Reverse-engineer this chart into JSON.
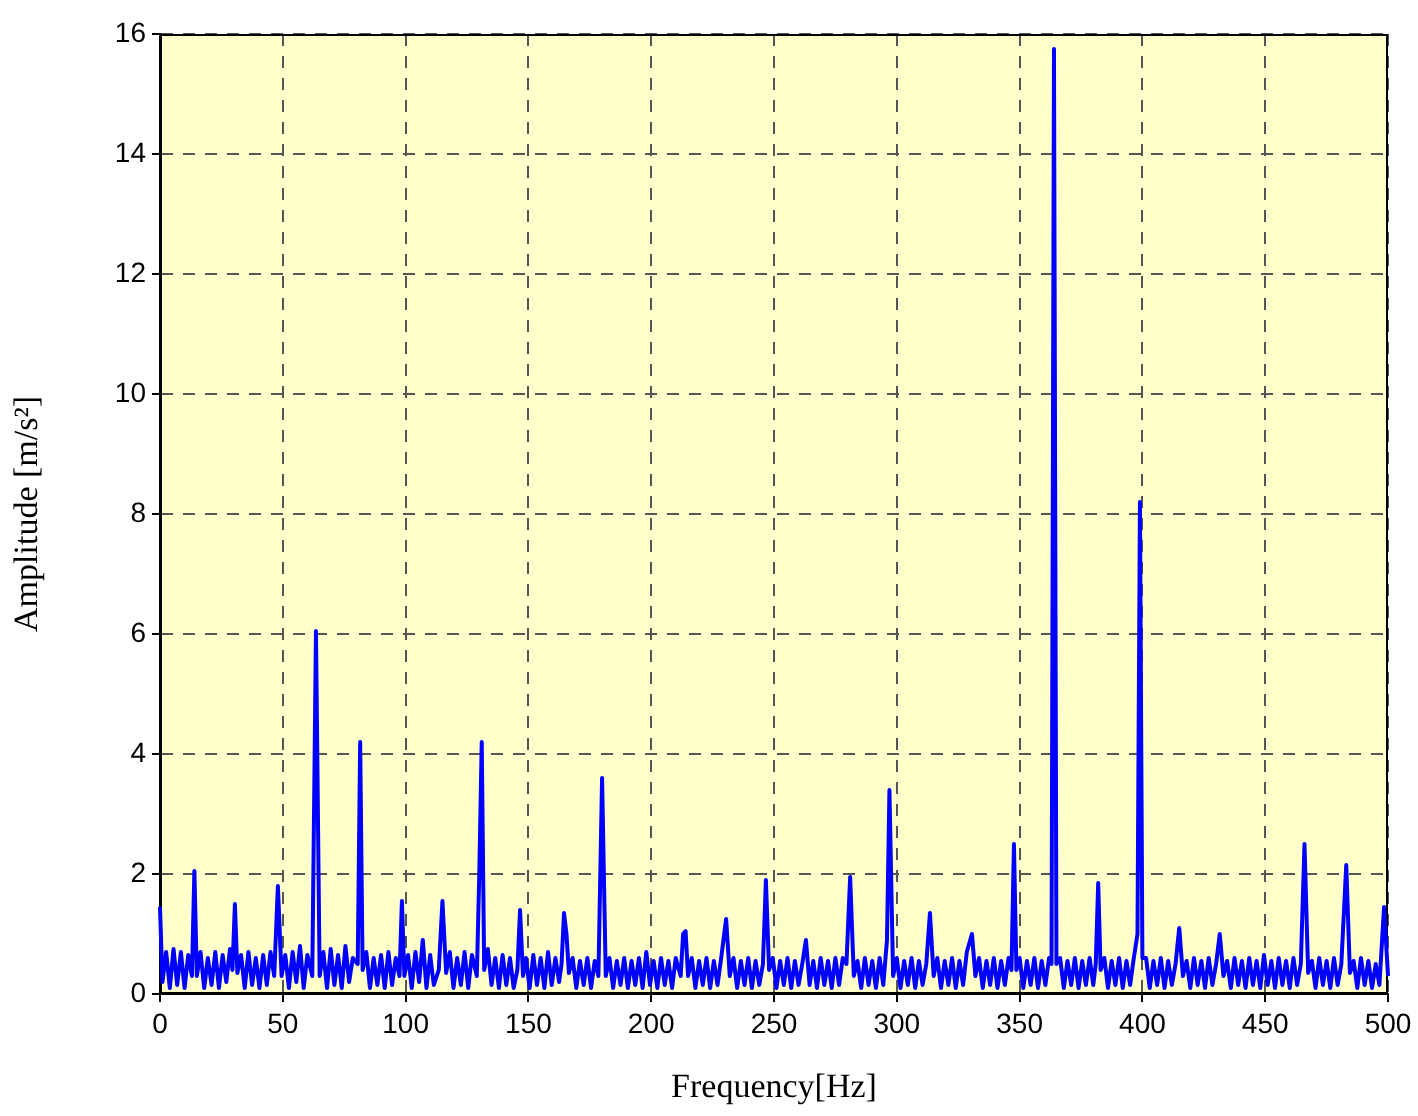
{
  "chart_data": {
    "type": "line",
    "xlabel": "Frequency[Hz]",
    "ylabel": "Amplitude [m/s²]",
    "xlim": [
      0,
      500
    ],
    "xticks": [
      0,
      50,
      100,
      150,
      200,
      250,
      300,
      350,
      400,
      450,
      500
    ],
    "ylim": [
      0,
      16
    ],
    "yticks": [
      0,
      2,
      4,
      6,
      8,
      10,
      12,
      14,
      16
    ],
    "grid": true,
    "legend": false,
    "marker": "none",
    "line_style": "solid",
    "series": [
      {
        "color": "#0000ff",
        "x": [
          0,
          1,
          2.5,
          4,
          5.5,
          7,
          8.5,
          10,
          11.5,
          13,
          14,
          15,
          16.5,
          18,
          19.5,
          21,
          22.5,
          24,
          25.5,
          27,
          28.5,
          29.5,
          30.5,
          31.5,
          33,
          34.5,
          36,
          37.5,
          39,
          40.5,
          42,
          43.5,
          45,
          46.5,
          48,
          49.5,
          51,
          52.5,
          54,
          55.5,
          57,
          58.5,
          60,
          62,
          63.5,
          65,
          66.5,
          68,
          69.5,
          71,
          72.5,
          74,
          75.5,
          77,
          78.5,
          80.5,
          81.5,
          82.5,
          84,
          85.5,
          87,
          88.5,
          90,
          91.5,
          93,
          94.5,
          96,
          97.5,
          98.5,
          99.5,
          101,
          102.5,
          104,
          105.5,
          107,
          108.5,
          110,
          111.5,
          113.5,
          115,
          116.5,
          118,
          119.5,
          121,
          122.5,
          124,
          125.5,
          127,
          129,
          130,
          131,
          132,
          133.5,
          135,
          136.5,
          138,
          139.5,
          141,
          142.5,
          144,
          145.5,
          146.6,
          147.8,
          149,
          150.5,
          152,
          153.5,
          155,
          156.5,
          158,
          159.5,
          161,
          162.5,
          163.5,
          164.5,
          165.5,
          166.5,
          168,
          169.5,
          171,
          172.5,
          174,
          175.5,
          177,
          178.5,
          180,
          181.5,
          183,
          184.5,
          186,
          187.5,
          189,
          190.5,
          192,
          193.5,
          195,
          196.5,
          198,
          199.5,
          201,
          202.5,
          204,
          205.5,
          207,
          208.5,
          210,
          212,
          213,
          214,
          215,
          216.5,
          218,
          219.5,
          221,
          222.5,
          224,
          225.5,
          227,
          228.5,
          230.5,
          232,
          233.5,
          235,
          236.5,
          238,
          239.5,
          241,
          242.5,
          244,
          245.5,
          246.7,
          248,
          249.5,
          251,
          252.5,
          254,
          255.5,
          257,
          258.5,
          260,
          261.5,
          263,
          264.5,
          266,
          267.5,
          269,
          270.5,
          272,
          273.5,
          275,
          276.5,
          278,
          279.5,
          281,
          282.5,
          284,
          285.5,
          287,
          288.5,
          290,
          291.5,
          293,
          294.5,
          296,
          297,
          298.5,
          300,
          301.5,
          303,
          304.5,
          306,
          307.5,
          309,
          310.5,
          312,
          313.5,
          315,
          316.5,
          318,
          319.5,
          321,
          322.5,
          324,
          325.5,
          327,
          328.5,
          330.6,
          332,
          333.5,
          335,
          336.5,
          338,
          339.5,
          341,
          342.5,
          344,
          345.5,
          346.7,
          347.7,
          348.7,
          350,
          351.5,
          353,
          354.5,
          356,
          357.5,
          359,
          360.5,
          362,
          363,
          364,
          365,
          366.5,
          368,
          369.5,
          371,
          372.5,
          374,
          375.5,
          377,
          378.5,
          380,
          381,
          382,
          383,
          384.5,
          386,
          387.5,
          389,
          390.5,
          392,
          393.5,
          395,
          396.5,
          398,
          399,
          400,
          401.5,
          403,
          404.5,
          406,
          407.5,
          409,
          410.5,
          412,
          413.5,
          415,
          416.5,
          418,
          419.5,
          421,
          422.5,
          424,
          425.5,
          427,
          428.5,
          430,
          431.5,
          433,
          434.5,
          436,
          437.5,
          439,
          440.5,
          442,
          443.5,
          445,
          446.5,
          448,
          449.5,
          451,
          452.5,
          454,
          455.5,
          457,
          458.5,
          460,
          461.5,
          463,
          464.5,
          466,
          467.5,
          469,
          470.5,
          472,
          473.5,
          475,
          476.5,
          478,
          479.5,
          481,
          483,
          484.5,
          486,
          487.5,
          489,
          490.5,
          492,
          493.5,
          495,
          496.5,
          498.4,
          500
        ],
        "values": [
          1.45,
          0.2,
          0.7,
          0.1,
          0.75,
          0.15,
          0.7,
          0.1,
          0.65,
          0.3,
          2.05,
          0.3,
          0.7,
          0.1,
          0.6,
          0.15,
          0.7,
          0.1,
          0.65,
          0.2,
          0.75,
          0.4,
          1.5,
          0.35,
          0.65,
          0.1,
          0.7,
          0.15,
          0.6,
          0.1,
          0.65,
          0.15,
          0.7,
          0.3,
          1.8,
          0.3,
          0.65,
          0.1,
          0.7,
          0.2,
          0.8,
          0.1,
          0.65,
          0.3,
          6.05,
          0.3,
          0.7,
          0.1,
          0.75,
          0.15,
          0.65,
          0.1,
          0.8,
          0.2,
          0.6,
          0.5,
          4.2,
          0.4,
          0.7,
          0.1,
          0.6,
          0.15,
          0.65,
          0.1,
          0.7,
          0.15,
          0.6,
          0.3,
          1.55,
          0.3,
          0.65,
          0.1,
          0.7,
          0.2,
          0.9,
          0.1,
          0.65,
          0.15,
          0.4,
          1.55,
          0.35,
          0.7,
          0.1,
          0.6,
          0.15,
          0.7,
          0.1,
          0.65,
          0.3,
          2.0,
          4.2,
          0.4,
          0.75,
          0.15,
          0.6,
          0.1,
          0.65,
          0.15,
          0.6,
          0.1,
          0.4,
          1.4,
          0.3,
          0.6,
          0.1,
          0.65,
          0.15,
          0.6,
          0.1,
          0.7,
          0.15,
          0.6,
          0.2,
          0.5,
          1.35,
          1.0,
          0.35,
          0.6,
          0.1,
          0.55,
          0.15,
          0.6,
          0.1,
          0.55,
          0.3,
          3.6,
          0.3,
          0.6,
          0.1,
          0.55,
          0.15,
          0.6,
          0.1,
          0.55,
          0.15,
          0.6,
          0.1,
          0.7,
          0.15,
          0.55,
          0.1,
          0.6,
          0.15,
          0.55,
          0.1,
          0.6,
          0.3,
          1.0,
          1.05,
          0.3,
          0.6,
          0.1,
          0.55,
          0.15,
          0.6,
          0.1,
          0.55,
          0.15,
          0.6,
          1.25,
          0.3,
          0.6,
          0.1,
          0.55,
          0.15,
          0.6,
          0.1,
          0.55,
          0.15,
          0.5,
          1.9,
          0.4,
          0.6,
          0.1,
          0.55,
          0.15,
          0.6,
          0.1,
          0.55,
          0.15,
          0.5,
          0.9,
          0.15,
          0.55,
          0.1,
          0.6,
          0.15,
          0.55,
          0.1,
          0.6,
          0.15,
          0.6,
          0.5,
          1.95,
          0.3,
          0.55,
          0.1,
          0.6,
          0.15,
          0.55,
          0.1,
          0.6,
          0.15,
          0.9,
          3.4,
          0.3,
          0.6,
          0.1,
          0.55,
          0.15,
          0.6,
          0.1,
          0.55,
          0.15,
          0.5,
          1.35,
          0.3,
          0.6,
          0.1,
          0.55,
          0.15,
          0.6,
          0.1,
          0.55,
          0.15,
          0.7,
          1.0,
          0.3,
          0.6,
          0.1,
          0.55,
          0.15,
          0.6,
          0.1,
          0.55,
          0.15,
          0.6,
          0.4,
          2.5,
          0.4,
          0.6,
          0.1,
          0.55,
          0.15,
          0.6,
          0.1,
          0.55,
          0.15,
          0.6,
          0.5,
          15.75,
          0.5,
          0.6,
          0.1,
          0.55,
          0.15,
          0.6,
          0.1,
          0.55,
          0.15,
          0.6,
          0.15,
          0.5,
          1.85,
          0.4,
          0.6,
          0.1,
          0.55,
          0.15,
          0.6,
          0.1,
          0.55,
          0.15,
          0.6,
          1.0,
          8.2,
          0.6,
          0.6,
          0.1,
          0.55,
          0.15,
          0.6,
          0.1,
          0.55,
          0.15,
          0.5,
          1.1,
          0.3,
          0.55,
          0.1,
          0.6,
          0.15,
          0.55,
          0.1,
          0.6,
          0.15,
          0.5,
          1.0,
          0.3,
          0.55,
          0.1,
          0.6,
          0.15,
          0.55,
          0.1,
          0.6,
          0.15,
          0.55,
          0.1,
          0.65,
          0.15,
          0.55,
          0.1,
          0.6,
          0.15,
          0.55,
          0.1,
          0.6,
          0.15,
          0.5,
          2.5,
          0.35,
          0.55,
          0.1,
          0.6,
          0.15,
          0.55,
          0.1,
          0.6,
          0.15,
          0.5,
          2.15,
          0.35,
          0.55,
          0.1,
          0.6,
          0.15,
          0.55,
          0.1,
          0.5,
          0.15,
          1.45,
          0.3
        ]
      }
    ]
  }
}
